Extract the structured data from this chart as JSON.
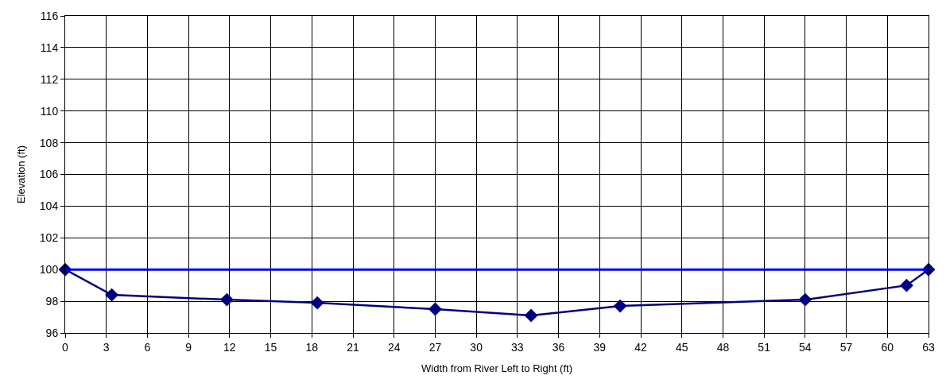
{
  "chart_data": {
    "type": "line",
    "xlabel": "Width from River Left to Right (ft)",
    "ylabel": "Elevation (ft)",
    "x": [
      0,
      3.4,
      11.8,
      18.4,
      27,
      34,
      40.5,
      54,
      61.4,
      63
    ],
    "series": [
      {
        "color": "#000080",
        "values": [
          100,
          98.4,
          98.1,
          97.9,
          97.5,
          97.1,
          97.7,
          98.1,
          99.0,
          100
        ]
      }
    ],
    "xlim": [
      0,
      63
    ],
    "xticks": [
      0,
      3,
      6,
      9,
      12,
      15,
      18,
      21,
      24,
      27,
      30,
      33,
      36,
      39,
      42,
      45,
      48,
      51,
      54,
      57,
      60,
      63
    ],
    "ylim": [
      96,
      116
    ],
    "yticks": [
      96,
      98,
      100,
      102,
      104,
      106,
      108,
      110,
      112,
      114,
      116
    ],
    "ref_lines": [
      {
        "axis": "y",
        "value": 100,
        "color": "#0000ff",
        "line_style": "solid"
      }
    ],
    "grid": true,
    "marker": "diamond",
    "line_style": "solid"
  }
}
